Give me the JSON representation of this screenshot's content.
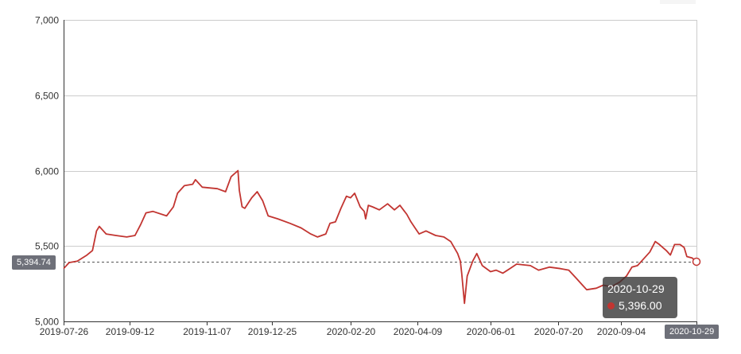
{
  "chart_data": {
    "type": "line",
    "title": "",
    "xlabel": "",
    "ylabel": "",
    "ylim": [
      5000,
      7000
    ],
    "y_ticks": [
      "5,000",
      "5,500",
      "6,000",
      "6,500",
      "7,000"
    ],
    "y_tick_values": [
      5000,
      5500,
      6000,
      6500,
      7000
    ],
    "x_ticks": [
      "2019-07-26",
      "2019-09-12",
      "2019-11-07",
      "2019-12-25",
      "2020-02-20",
      "2020-04-09",
      "2020-06-01",
      "2020-07-20",
      "2020-09-04",
      "2020-10-29"
    ],
    "grid": true,
    "line_color": "#c23531",
    "series": [
      {
        "points": [
          [
            "2019-07-26",
            5350
          ],
          [
            "2019-07-30",
            5390
          ],
          [
            "2019-08-05",
            5400
          ],
          [
            "2019-08-12",
            5440
          ],
          [
            "2019-08-16",
            5470
          ],
          [
            "2019-08-19",
            5600
          ],
          [
            "2019-08-21",
            5630
          ],
          [
            "2019-08-26",
            5580
          ],
          [
            "2019-09-02",
            5570
          ],
          [
            "2019-09-10",
            5560
          ],
          [
            "2019-09-16",
            5570
          ],
          [
            "2019-09-20",
            5640
          ],
          [
            "2019-09-24",
            5720
          ],
          [
            "2019-09-29",
            5730
          ],
          [
            "2019-10-09",
            5700
          ],
          [
            "2019-10-14",
            5760
          ],
          [
            "2019-10-17",
            5850
          ],
          [
            "2019-10-22",
            5900
          ],
          [
            "2019-10-28",
            5910
          ],
          [
            "2019-10-30",
            5940
          ],
          [
            "2019-11-04",
            5890
          ],
          [
            "2019-11-15",
            5880
          ],
          [
            "2019-11-21",
            5860
          ],
          [
            "2019-11-25",
            5960
          ],
          [
            "2019-11-30",
            6000
          ],
          [
            "2019-12-01",
            5870
          ],
          [
            "2019-12-03",
            5760
          ],
          [
            "2019-12-05",
            5750
          ],
          [
            "2019-12-10",
            5820
          ],
          [
            "2019-12-14",
            5860
          ],
          [
            "2019-12-18",
            5800
          ],
          [
            "2019-12-22",
            5700
          ],
          [
            "2019-12-29",
            5680
          ],
          [
            "2020-01-07",
            5650
          ],
          [
            "2020-01-15",
            5620
          ],
          [
            "2020-01-22",
            5580
          ],
          [
            "2020-01-27",
            5560
          ],
          [
            "2020-02-02",
            5580
          ],
          [
            "2020-02-05",
            5650
          ],
          [
            "2020-02-09",
            5660
          ],
          [
            "2020-02-13",
            5750
          ],
          [
            "2020-02-17",
            5830
          ],
          [
            "2020-02-20",
            5820
          ],
          [
            "2020-02-23",
            5850
          ],
          [
            "2020-02-27",
            5760
          ],
          [
            "2020-03-01",
            5730
          ],
          [
            "2020-03-02",
            5680
          ],
          [
            "2020-03-04",
            5770
          ],
          [
            "2020-03-07",
            5760
          ],
          [
            "2020-03-12",
            5740
          ],
          [
            "2020-03-18",
            5780
          ],
          [
            "2020-03-23",
            5740
          ],
          [
            "2020-03-27",
            5770
          ],
          [
            "2020-04-01",
            5710
          ],
          [
            "2020-04-04",
            5660
          ],
          [
            "2020-04-07",
            5620
          ],
          [
            "2020-04-10",
            5580
          ],
          [
            "2020-04-15",
            5600
          ],
          [
            "2020-04-22",
            5570
          ],
          [
            "2020-04-28",
            5560
          ],
          [
            "2020-05-03",
            5530
          ],
          [
            "2020-05-08",
            5450
          ],
          [
            "2020-05-10",
            5400
          ],
          [
            "2020-05-11",
            5320
          ],
          [
            "2020-05-13",
            5120
          ],
          [
            "2020-05-15",
            5300
          ],
          [
            "2020-05-19",
            5400
          ],
          [
            "2020-05-22",
            5450
          ],
          [
            "2020-05-26",
            5370
          ],
          [
            "2020-06-01",
            5330
          ],
          [
            "2020-06-05",
            5340
          ],
          [
            "2020-06-10",
            5320
          ],
          [
            "2020-06-15",
            5350
          ],
          [
            "2020-06-20",
            5380
          ],
          [
            "2020-06-30",
            5370
          ],
          [
            "2020-07-06",
            5340
          ],
          [
            "2020-07-14",
            5360
          ],
          [
            "2020-07-22",
            5350
          ],
          [
            "2020-07-28",
            5340
          ],
          [
            "2020-08-02",
            5290
          ],
          [
            "2020-08-07",
            5240
          ],
          [
            "2020-08-10",
            5210
          ],
          [
            "2020-08-17",
            5220
          ],
          [
            "2020-08-22",
            5240
          ],
          [
            "2020-08-28",
            5230
          ],
          [
            "2020-09-03",
            5260
          ],
          [
            "2020-09-08",
            5300
          ],
          [
            "2020-09-12",
            5360
          ],
          [
            "2020-09-16",
            5370
          ],
          [
            "2020-09-20",
            5410
          ],
          [
            "2020-09-25",
            5460
          ],
          [
            "2020-09-29",
            5530
          ],
          [
            "2020-10-02",
            5510
          ],
          [
            "2020-10-07",
            5470
          ],
          [
            "2020-10-10",
            5440
          ],
          [
            "2020-10-13",
            5510
          ],
          [
            "2020-10-17",
            5510
          ],
          [
            "2020-10-20",
            5490
          ],
          [
            "2020-10-22",
            5430
          ],
          [
            "2020-10-26",
            5420
          ],
          [
            "2020-10-29",
            5396
          ]
        ]
      }
    ]
  },
  "axis_pointer": {
    "y_value_label": "5,394.74",
    "x_value_label": "2020-10-29",
    "y_value": 5394.74
  },
  "tooltip": {
    "date": "2020-10-29",
    "value": "5,396.00"
  }
}
